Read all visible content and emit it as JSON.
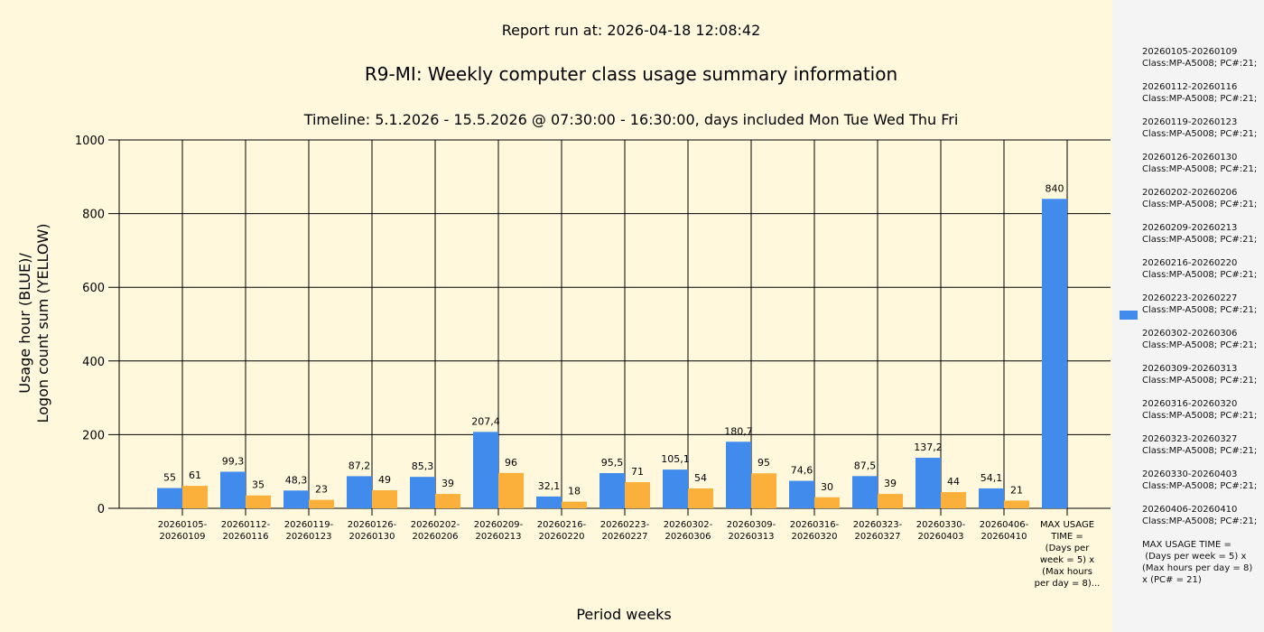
{
  "chart_data": {
    "type": "bar",
    "report_run": "Report run at: 2026-04-18 12:08:42",
    "title": "R9-MI: Weekly computer class usage summary information",
    "subtitle": "Timeline:  5.1.2026  - 15.5.2026  @  07:30:00 -  16:30:00, days included Mon Tue Wed Thu Fri",
    "xlabel": "Period weeks",
    "ylabel": [
      "Usage hour (BLUE)/",
      "Logon count sum (YELLOW)"
    ],
    "ylim": [
      0,
      1000
    ],
    "yticks": [
      0,
      200,
      400,
      600,
      800,
      1000
    ],
    "grid": true,
    "categories": [
      [
        "20260105-",
        "20260109"
      ],
      [
        "20260112-",
        "20260116"
      ],
      [
        "20260119-",
        "20260123"
      ],
      [
        "20260126-",
        "20260130"
      ],
      [
        "20260202-",
        "20260206"
      ],
      [
        "20260209-",
        "20260213"
      ],
      [
        "20260216-",
        "20260220"
      ],
      [
        "20260223-",
        "20260227"
      ],
      [
        "20260302-",
        "20260306"
      ],
      [
        "20260309-",
        "20260313"
      ],
      [
        "20260316-",
        "20260320"
      ],
      [
        "20260323-",
        "20260327"
      ],
      [
        "20260330-",
        "20260403"
      ],
      [
        "20260406-",
        "20260410"
      ],
      [
        "MAX USAGE",
        "TIME =",
        "(Days per",
        "week = 5) x",
        "(Max hours",
        "per day = 8)..."
      ]
    ],
    "series": [
      {
        "name": "Usage hour",
        "color": "#418BEC",
        "values": [
          55,
          99.3,
          48.3,
          87.2,
          85.3,
          207.4,
          32.1,
          95.5,
          105.1,
          180.7,
          74.6,
          87.5,
          137.2,
          54.1,
          840
        ],
        "labels": [
          "55",
          "99,3",
          "48,3",
          "87,2",
          "85,3",
          "207,4",
          "32,1",
          "95,5",
          "105,1",
          "180,7",
          "74,6",
          "87,5",
          "137,2",
          "54,1",
          "840"
        ]
      },
      {
        "name": "Logon count sum",
        "color": "#FBB03B",
        "values": [
          61,
          35,
          23,
          49,
          39,
          96,
          18,
          71,
          54,
          95,
          30,
          39,
          44,
          21,
          null
        ],
        "labels": [
          "61",
          "35",
          "23",
          "49",
          "39",
          "96",
          "18",
          "71",
          "54",
          "95",
          "30",
          "39",
          "44",
          "21",
          ""
        ]
      }
    ],
    "legend": {
      "placement": "right",
      "items": [
        "20260105-20260109\nClass:MP-A5008; PC#:21;",
        "20260112-20260116\nClass:MP-A5008; PC#:21;",
        "20260119-20260123\nClass:MP-A5008; PC#:21;",
        "20260126-20260130\nClass:MP-A5008; PC#:21;",
        "20260202-20260206\nClass:MP-A5008; PC#:21;",
        "20260209-20260213\nClass:MP-A5008; PC#:21;",
        "20260216-20260220\nClass:MP-A5008; PC#:21;",
        "20260223-20260227\nClass:MP-A5008; PC#:21;",
        "20260302-20260306\nClass:MP-A5008; PC#:21;",
        "20260309-20260313\nClass:MP-A5008; PC#:21;",
        "20260316-20260320\nClass:MP-A5008; PC#:21;",
        "20260323-20260327\nClass:MP-A5008; PC#:21;",
        "20260330-20260403\nClass:MP-A5008; PC#:21;",
        "20260406-20260410\nClass:MP-A5008; PC#:21;",
        "MAX USAGE TIME =\n (Days per week = 5) x (Max hours per day = 8) x (PC# = 21)"
      ]
    }
  }
}
